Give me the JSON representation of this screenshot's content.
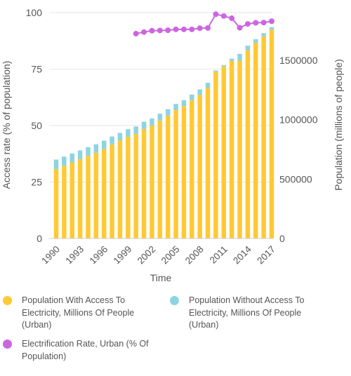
{
  "chart_data": {
    "type": "bar",
    "xlabel": "Time",
    "ylabel_left": "Access rate (% of population)",
    "ylabel_right": "Population (millions of people)",
    "left_axis": {
      "ylim": [
        0,
        100
      ],
      "ticks": [
        0,
        25,
        50,
        75,
        100
      ]
    },
    "right_axis": {
      "ylim": [
        0,
        1900000
      ],
      "ticks": [
        0,
        500000,
        1000000,
        1500000
      ]
    },
    "x_tick_labels": [
      "1990",
      "1993",
      "1996",
      "1999",
      "2002",
      "2005",
      "2008",
      "2011",
      "2014",
      "2017"
    ],
    "categories": [
      1990,
      1991,
      1992,
      1993,
      1994,
      1995,
      1996,
      1997,
      1998,
      1999,
      2000,
      2001,
      2002,
      2003,
      2004,
      2005,
      2006,
      2007,
      2008,
      2009,
      2010,
      2011,
      2012,
      2013,
      2014,
      2015,
      2016,
      2017
    ],
    "series": [
      {
        "name": "Population With Access To Electricity, Millions Of People (Urban)",
        "axis": "right",
        "kind": "stacked-bar",
        "color": "#FFC933",
        "values": [
          583000,
          612000,
          640000,
          667000,
          695000,
          722000,
          752000,
          792000,
          824000,
          856000,
          880000,
          921000,
          951000,
          993000,
          1034000,
          1080000,
          1114000,
          1164000,
          1208000,
          1266000,
          1403000,
          1449000,
          1493000,
          1496000,
          1584000,
          1646000,
          1700000,
          1756000
        ]
      },
      {
        "name": "Population Without Access To Electricity, Millions Of People (Urban)",
        "axis": "right",
        "kind": "stacked-bar",
        "color": "#8DD4E1",
        "values": [
          81000,
          77000,
          75000,
          74000,
          73000,
          71000,
          71000,
          66000,
          64000,
          63000,
          62000,
          61000,
          59000,
          57000,
          54000,
          52000,
          50000,
          47000,
          46000,
          44000,
          10000,
          10000,
          20000,
          57000,
          38000,
          31000,
          27000,
          22000
        ]
      },
      {
        "name": "Electrification Rate, Urban (% Of Population)",
        "axis": "left",
        "kind": "line",
        "color": "#CC66E0",
        "x": [
          2000,
          2001,
          2002,
          2003,
          2004,
          2005,
          2006,
          2007,
          2008,
          2009,
          2010,
          2011,
          2012,
          2013,
          2014,
          2015,
          2016,
          2017
        ],
        "values": [
          90.7,
          91.4,
          92.0,
          92.1,
          92.2,
          92.6,
          92.6,
          92.6,
          93.1,
          93.2,
          99.3,
          98.5,
          97.5,
          93.3,
          95.0,
          95.5,
          95.6,
          96.2
        ]
      }
    ]
  },
  "legend": {
    "items": [
      {
        "label": "Population With Access To Electricity, Millions Of People (Urban)",
        "color": "#FFC933"
      },
      {
        "label": "Population Without Access To Electricity, Millions Of People (Urban)",
        "color": "#8DD4E1"
      },
      {
        "label": "Electrification Rate, Urban (% Of Population)",
        "color": "#CC66E0"
      }
    ]
  }
}
